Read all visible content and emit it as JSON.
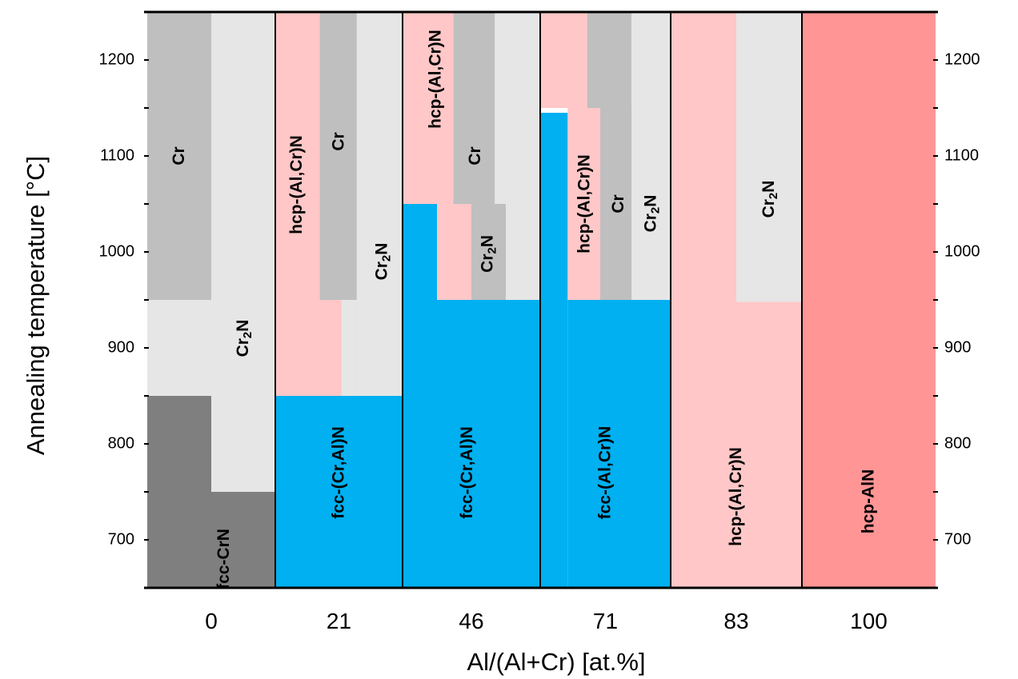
{
  "chart_data": {
    "type": "phase-map",
    "xlabel": "Al/(Al+Cr) [at.%]",
    "ylabel": "Annealing temperature [°C]",
    "ylim": [
      650,
      1250
    ],
    "yticks": [
      700,
      800,
      900,
      1000,
      1100,
      1200
    ],
    "categories": [
      "0",
      "21",
      "46",
      "71",
      "83",
      "100"
    ],
    "colors": {
      "Cr": "#bfbfbf",
      "Cr2N": "#e6e6e6",
      "fcc-CrN": "#7f7f7f",
      "fcc": "#00b0f0",
      "hcp": "#ffc7c7",
      "hcp-AlN": "#ff9595"
    },
    "regions": [
      {
        "col": 0,
        "phase": "Cr",
        "x0": 0,
        "x1": 0.5,
        "y0": 950,
        "y1": 1250
      },
      {
        "col": 0,
        "phase": "Cr2N",
        "x0": 0.5,
        "x1": 1,
        "y0": 750,
        "y1": 1250
      },
      {
        "col": 0,
        "phase": "Cr2N",
        "x0": 0,
        "x1": 0.5,
        "y0": 850,
        "y1": 950
      },
      {
        "col": 0,
        "phase": "fcc-CrN",
        "x0": 0,
        "x1": 0.5,
        "y0": 650,
        "y1": 850
      },
      {
        "col": 0,
        "phase": "fcc-CrN",
        "x0": 0.5,
        "x1": 1,
        "y0": 650,
        "y1": 750
      },
      {
        "col": 1,
        "phase": "hcp",
        "x0": 0,
        "x1": 1,
        "y0": 850,
        "y1": 1250
      },
      {
        "col": 1,
        "phase": "Cr",
        "x0": 0.35,
        "x1": 0.64,
        "y0": 950,
        "y1": 1250
      },
      {
        "col": 1,
        "phase": "Cr2N",
        "x0": 0.64,
        "x1": 1,
        "y0": 850,
        "y1": 1250
      },
      {
        "col": 1,
        "phase": "Cr2N",
        "x0": 0.52,
        "x1": 0.64,
        "y0": 850,
        "y1": 950
      },
      {
        "col": 1,
        "phase": "fcc",
        "x0": 0,
        "x1": 1,
        "y0": 650,
        "y1": 850
      },
      {
        "col": 2,
        "phase": "hcp",
        "x0": 0,
        "x1": 1,
        "y0": 1050,
        "y1": 1250
      },
      {
        "col": 2,
        "phase": "Cr",
        "x0": 0.37,
        "x1": 0.67,
        "y0": 1050,
        "y1": 1250
      },
      {
        "col": 2,
        "phase": "Cr2N",
        "x0": 0.67,
        "x1": 1,
        "y0": 950,
        "y1": 1250
      },
      {
        "col": 2,
        "phase": "hcp",
        "x0": 0.25,
        "x1": 0.5,
        "y0": 950,
        "y1": 1050
      },
      {
        "col": 2,
        "phase": "Cr",
        "x0": 0.5,
        "x1": 0.75,
        "y0": 950,
        "y1": 1050
      },
      {
        "col": 2,
        "phase": "fcc",
        "x0": 0,
        "x1": 0.25,
        "y0": 650,
        "y1": 1050
      },
      {
        "col": 2,
        "phase": "fcc",
        "x0": 0.25,
        "x1": 1,
        "y0": 650,
        "y1": 950
      },
      {
        "col": 3,
        "phase": "hcp",
        "x0": 0,
        "x1": 0.36,
        "y0": 1150,
        "y1": 1250
      },
      {
        "col": 3,
        "phase": "Cr",
        "x0": 0.36,
        "x1": 0.7,
        "y0": 1150,
        "y1": 1250
      },
      {
        "col": 3,
        "phase": "Cr2N",
        "x0": 0.7,
        "x1": 1,
        "y0": 950,
        "y1": 1250
      },
      {
        "col": 3,
        "phase": "hcp",
        "x0": 0.21,
        "x1": 0.46,
        "y0": 950,
        "y1": 1150
      },
      {
        "col": 3,
        "phase": "Cr",
        "x0": 0.46,
        "x1": 0.7,
        "y0": 950,
        "y1": 1150
      },
      {
        "col": 3,
        "phase": "fcc",
        "x0": 0,
        "x1": 0.21,
        "y0": 650,
        "y1": 1145
      },
      {
        "col": 3,
        "phase": "fcc",
        "x0": 0.21,
        "x1": 1,
        "y0": 650,
        "y1": 950
      },
      {
        "col": 4,
        "phase": "hcp",
        "x0": 0,
        "x1": 0.5,
        "y0": 650,
        "y1": 1250
      },
      {
        "col": 4,
        "phase": "Cr2N",
        "x0": 0.5,
        "x1": 1,
        "y0": 948,
        "y1": 1250
      },
      {
        "col": 4,
        "phase": "hcp",
        "x0": 0.5,
        "x1": 1,
        "y0": 650,
        "y1": 948
      },
      {
        "col": 5,
        "phase": "hcp-AlN",
        "x0": 0,
        "x1": 1,
        "y0": 650,
        "y1": 1250
      }
    ],
    "labels": [
      {
        "col": 0,
        "text": "Cr",
        "x": 0.25,
        "y": 1100
      },
      {
        "col": 0,
        "text": "Cr",
        "sub": "2",
        "after": "N",
        "x": 0.75,
        "y": 910
      },
      {
        "col": 0,
        "text": "fcc-CrN",
        "x": 0.6,
        "y": 680
      },
      {
        "col": 1,
        "text": "hcp-(Al,Cr)N",
        "x": 0.17,
        "y": 1070
      },
      {
        "col": 1,
        "text": "Cr",
        "x": 0.5,
        "y": 1115
      },
      {
        "col": 1,
        "text": "Cr",
        "sub": "2",
        "after": "N",
        "x": 0.84,
        "y": 990
      },
      {
        "col": 1,
        "text": "fcc-(Cr,Al)N",
        "x": 0.5,
        "y": 770
      },
      {
        "col": 2,
        "text": "hcp-(Al,Cr)N",
        "x": 0.24,
        "y": 1180
      },
      {
        "col": 2,
        "text": "Cr",
        "x": 0.53,
        "y": 1100
      },
      {
        "col": 2,
        "text": "Cr",
        "sub": "2",
        "after": "N",
        "x": 0.62,
        "y": 998
      },
      {
        "col": 2,
        "text": "fcc-(Cr,Al)N",
        "x": 0.47,
        "y": 770
      },
      {
        "col": 3,
        "text": "hcp-(Al,Cr)N",
        "x": 0.34,
        "y": 1050
      },
      {
        "col": 3,
        "text": "Cr",
        "x": 0.6,
        "y": 1050
      },
      {
        "col": 3,
        "text": "Cr",
        "sub": "2",
        "after": "N",
        "x": 0.85,
        "y": 1040
      },
      {
        "col": 3,
        "text": "fcc-(Al,Cr)N",
        "x": 0.5,
        "y": 770
      },
      {
        "col": 4,
        "text": "Cr",
        "sub": "2",
        "after": "N",
        "x": 0.75,
        "y": 1055
      },
      {
        "col": 4,
        "text": "hcp-(Al,Cr)N",
        "x": 0.5,
        "y": 745
      },
      {
        "col": 5,
        "text": "hcp-AlN",
        "x": 0.5,
        "y": 740
      }
    ]
  }
}
